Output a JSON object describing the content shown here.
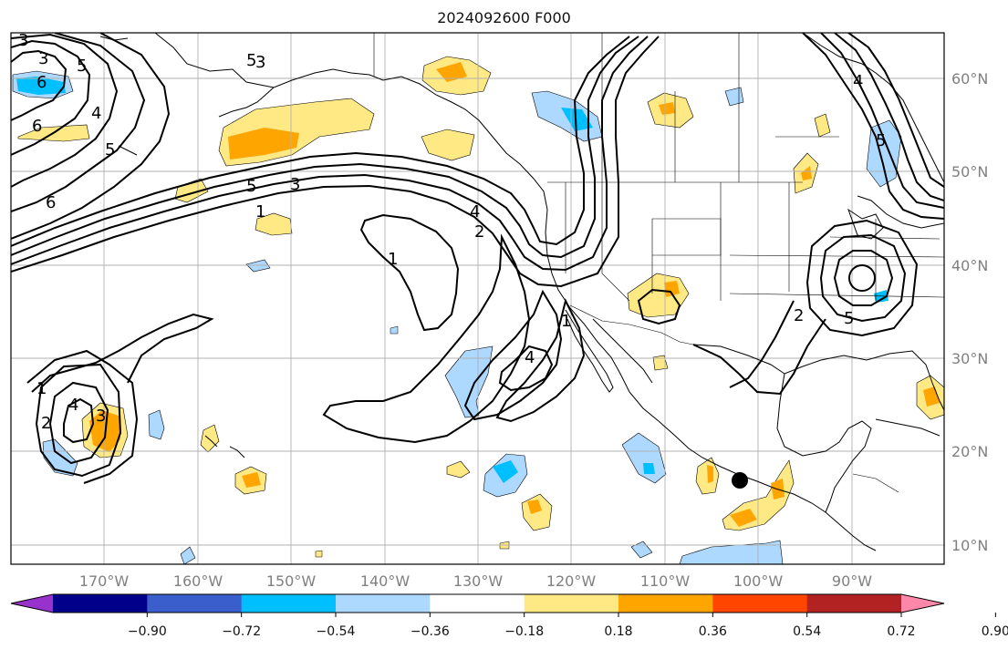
{
  "title": "2024092600 F000",
  "map": {
    "lat_labels": [
      "60°N",
      "50°N",
      "40°N",
      "30°N",
      "20°N",
      "10°N"
    ],
    "lon_labels": [
      "170°W",
      "160°W",
      "150°W",
      "140°W",
      "130°W",
      "120°W",
      "110°W",
      "100°W",
      "90°W"
    ],
    "contour_labels": [
      "3",
      "5",
      "6",
      "4",
      "5",
      "6",
      "5",
      "3",
      "6",
      "5",
      "3",
      "1",
      "1",
      "4",
      "2",
      "4",
      "4",
      "1",
      "3",
      "2",
      "5",
      "5",
      "4",
      "3",
      "2",
      "1"
    ],
    "contour_color": "#000000",
    "coastline_color": "#000000",
    "grid_color": "#b0b0b0",
    "marker": "storm-position-dot"
  },
  "colorbar": {
    "ticks": [
      "−0.90",
      "−0.72",
      "−0.54",
      "−0.36",
      "−0.18",
      "0.18",
      "0.36",
      "0.54",
      "0.72",
      "0.90"
    ],
    "colors": [
      "#9932cc",
      "#00008b",
      "#3a5fcd",
      "#00bfff",
      "#add8ff",
      "#ffffff",
      "#ffe985",
      "#ffa500",
      "#ff4500",
      "#b22222",
      "#ff88aa"
    ]
  }
}
